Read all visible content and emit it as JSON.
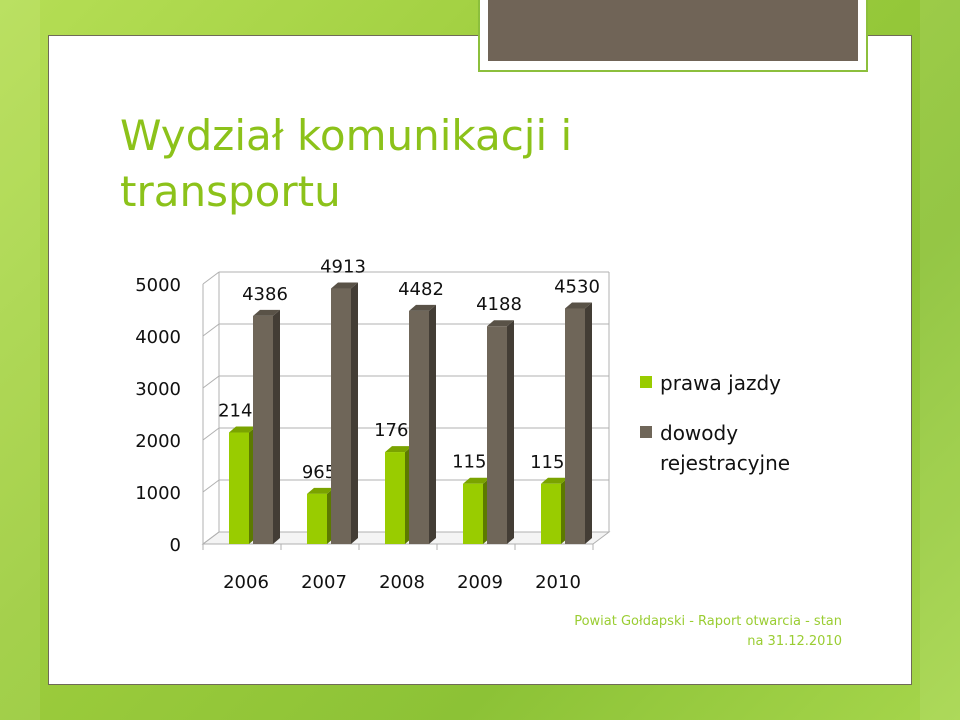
{
  "slide": {
    "title_line1": "Wydział komunikacji i",
    "title_line2": "transportu",
    "footer_line1": "Powiat Gołdapski - Raport otwarcia - stan",
    "footer_line2": "na 31.12.2010"
  },
  "colors": {
    "accent_green": "#8cc21a",
    "series_green": "#99cc00",
    "series_brown": "#6f6659"
  },
  "chart_data": {
    "type": "bar",
    "categories": [
      "2006",
      "2007",
      "2008",
      "2009",
      "2010"
    ],
    "series": [
      {
        "name": "prawa jazdy",
        "values": [
          2144,
          965,
          1768,
          1159,
          1158
        ],
        "color": "#99cc00"
      },
      {
        "name": "dowody rejestracyjne",
        "values": [
          4386,
          4913,
          4482,
          4188,
          4530
        ],
        "color": "#6f6659"
      }
    ],
    "ylim": [
      0,
      5000
    ],
    "yticks": [
      0,
      1000,
      2000,
      3000,
      4000,
      5000
    ],
    "grid": true,
    "legend_position": "right"
  }
}
